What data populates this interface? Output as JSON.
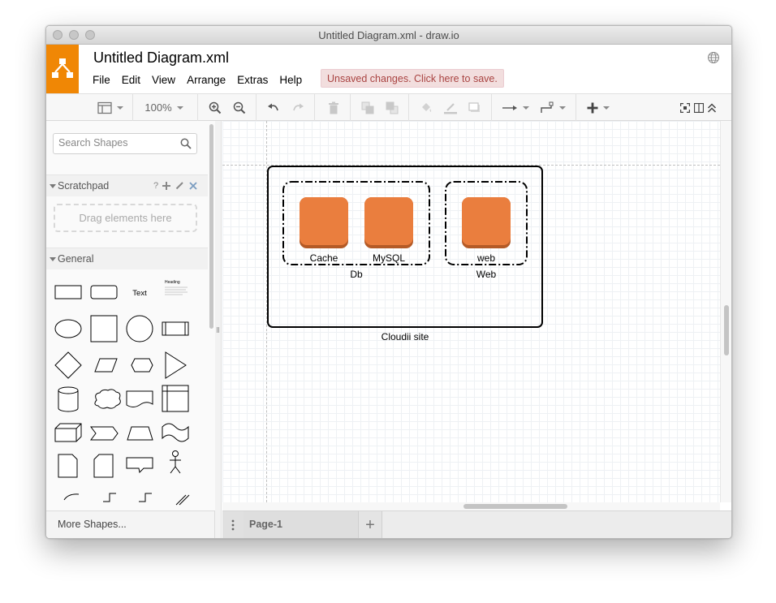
{
  "window": {
    "title": "Untitled Diagram.xml - draw.io"
  },
  "header": {
    "doc_title": "Untitled Diagram.xml",
    "menu": [
      "File",
      "Edit",
      "View",
      "Arrange",
      "Extras",
      "Help"
    ],
    "unsaved_notice": "Unsaved changes. Click here to save."
  },
  "toolbar": {
    "zoom": "100%"
  },
  "sidebar": {
    "search_placeholder": "Search Shapes",
    "scratchpad_title": "Scratchpad",
    "scratchpad_help": "?",
    "scratchpad_dropzone": "Drag elements here",
    "general_title": "General",
    "shape_text_label": "Text",
    "shape_heading_label": "Heading",
    "more_shapes": "More Shapes..."
  },
  "diagram": {
    "outer_container_label": "Cloudii site",
    "groups": [
      {
        "label": "Db",
        "items": [
          "Cache",
          "MySQL"
        ]
      },
      {
        "label": "Web",
        "items": [
          "web"
        ]
      }
    ],
    "node_color": "#ea7e3e",
    "node_shadow_color": "#b45a26"
  },
  "pages": {
    "tabs": [
      "Page-1"
    ],
    "add_symbol": "+"
  },
  "colors": {
    "logo": "#f08705",
    "unsaved_bg": "#f2dede",
    "unsaved_text": "#a94442"
  }
}
